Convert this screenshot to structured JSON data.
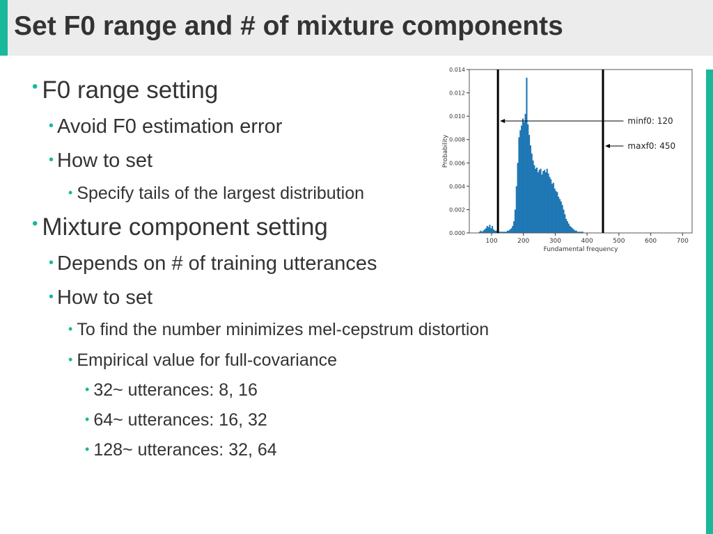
{
  "slide": {
    "title": "Set F0 range and # of mixture components",
    "bullets": [
      {
        "level": 1,
        "text": "F0 range setting"
      },
      {
        "level": 2,
        "text": "Avoid F0 estimation error"
      },
      {
        "level": 2,
        "text": "How to set"
      },
      {
        "level": 3,
        "text": "Specify tails of the largest distribution"
      },
      {
        "level": 1,
        "text": "Mixture component setting"
      },
      {
        "level": 2,
        "text": "Depends on # of training utterances"
      },
      {
        "level": 2,
        "text": "How to set"
      },
      {
        "level": 3,
        "text": "To find the number minimizes mel-cepstrum distortion"
      },
      {
        "level": 3,
        "text": "Empirical value for full-covariance"
      },
      {
        "level": 4,
        "text": "32~ utterances: 8, 16"
      },
      {
        "level": 4,
        "text": "64~ utterances: 16, 32"
      },
      {
        "level": 4,
        "text": "128~ utterances: 32, 64"
      }
    ],
    "bullet_glyph": "•",
    "colors": {
      "accent": "#19b89b",
      "title_band": "#ececec",
      "text": "#333333",
      "bars": "#1f77b4"
    }
  },
  "chart_data": {
    "type": "bar",
    "xlabel": "Fundamental frequency",
    "ylabel": "Probability",
    "xlim": [
      30,
      730
    ],
    "ylim": [
      0,
      0.014
    ],
    "xticks": [
      100,
      200,
      300,
      400,
      500,
      600,
      700
    ],
    "yticks": [
      0.0,
      0.002,
      0.004,
      0.006,
      0.008,
      0.01,
      0.012,
      0.014
    ],
    "ytick_labels": [
      "0.000",
      "0.002",
      "0.004",
      "0.006",
      "0.008",
      "0.010",
      "0.012",
      "0.014"
    ],
    "bin_width": 4,
    "bins": [
      {
        "x": 60,
        "y": 0.0001
      },
      {
        "x": 64,
        "y": 0.0002
      },
      {
        "x": 68,
        "y": 0.0001
      },
      {
        "x": 72,
        "y": 0.0002
      },
      {
        "x": 76,
        "y": 0.0003
      },
      {
        "x": 80,
        "y": 0.0004
      },
      {
        "x": 84,
        "y": 0.0006
      },
      {
        "x": 88,
        "y": 0.0005
      },
      {
        "x": 92,
        "y": 0.0007
      },
      {
        "x": 96,
        "y": 0.0004
      },
      {
        "x": 100,
        "y": 0.0006
      },
      {
        "x": 104,
        "y": 0.0003
      },
      {
        "x": 108,
        "y": 0.0002
      },
      {
        "x": 112,
        "y": 0.0002
      },
      {
        "x": 116,
        "y": 0.0001
      },
      {
        "x": 120,
        "y": 0.0001
      },
      {
        "x": 124,
        "y": 0.0001
      },
      {
        "x": 128,
        "y": 0.0001
      },
      {
        "x": 132,
        "y": 0.0001
      },
      {
        "x": 136,
        "y": 0.0001
      },
      {
        "x": 140,
        "y": 0.0001
      },
      {
        "x": 144,
        "y": 0.0001
      },
      {
        "x": 148,
        "y": 0.0002
      },
      {
        "x": 152,
        "y": 0.0002
      },
      {
        "x": 156,
        "y": 0.0003
      },
      {
        "x": 160,
        "y": 0.0004
      },
      {
        "x": 164,
        "y": 0.0006
      },
      {
        "x": 168,
        "y": 0.001
      },
      {
        "x": 172,
        "y": 0.002
      },
      {
        "x": 176,
        "y": 0.004
      },
      {
        "x": 180,
        "y": 0.006
      },
      {
        "x": 184,
        "y": 0.0082
      },
      {
        "x": 188,
        "y": 0.0088
      },
      {
        "x": 192,
        "y": 0.0092
      },
      {
        "x": 196,
        "y": 0.0098
      },
      {
        "x": 200,
        "y": 0.0095
      },
      {
        "x": 204,
        "y": 0.0102
      },
      {
        "x": 208,
        "y": 0.0133
      },
      {
        "x": 212,
        "y": 0.0093
      },
      {
        "x": 216,
        "y": 0.0084
      },
      {
        "x": 220,
        "y": 0.0075
      },
      {
        "x": 224,
        "y": 0.0068
      },
      {
        "x": 228,
        "y": 0.0062
      },
      {
        "x": 232,
        "y": 0.0058
      },
      {
        "x": 236,
        "y": 0.0055
      },
      {
        "x": 240,
        "y": 0.0056
      },
      {
        "x": 244,
        "y": 0.0052
      },
      {
        "x": 248,
        "y": 0.0054
      },
      {
        "x": 252,
        "y": 0.0055
      },
      {
        "x": 256,
        "y": 0.005
      },
      {
        "x": 260,
        "y": 0.0053
      },
      {
        "x": 264,
        "y": 0.0054
      },
      {
        "x": 268,
        "y": 0.0052
      },
      {
        "x": 272,
        "y": 0.0055
      },
      {
        "x": 276,
        "y": 0.0051
      },
      {
        "x": 280,
        "y": 0.0048
      },
      {
        "x": 284,
        "y": 0.0046
      },
      {
        "x": 288,
        "y": 0.0042
      },
      {
        "x": 292,
        "y": 0.0043
      },
      {
        "x": 296,
        "y": 0.0038
      },
      {
        "x": 300,
        "y": 0.0036
      },
      {
        "x": 304,
        "y": 0.0035
      },
      {
        "x": 308,
        "y": 0.0031
      },
      {
        "x": 312,
        "y": 0.0029
      },
      {
        "x": 316,
        "y": 0.0027
      },
      {
        "x": 320,
        "y": 0.0024
      },
      {
        "x": 324,
        "y": 0.002
      },
      {
        "x": 328,
        "y": 0.0016
      },
      {
        "x": 332,
        "y": 0.0012
      },
      {
        "x": 336,
        "y": 0.001
      },
      {
        "x": 340,
        "y": 0.0008
      },
      {
        "x": 344,
        "y": 0.0006
      },
      {
        "x": 348,
        "y": 0.0005
      },
      {
        "x": 352,
        "y": 0.0004
      },
      {
        "x": 356,
        "y": 0.0003
      },
      {
        "x": 360,
        "y": 0.0002
      },
      {
        "x": 364,
        "y": 0.0002
      },
      {
        "x": 368,
        "y": 0.0001
      },
      {
        "x": 372,
        "y": 0.0001
      },
      {
        "x": 376,
        "y": 0.0001
      },
      {
        "x": 380,
        "y": 0.0001
      },
      {
        "x": 384,
        "y": 0.0001
      }
    ],
    "markers": [
      {
        "x": 120,
        "label": "minf0: 120"
      },
      {
        "x": 450,
        "label": "maxf0: 450"
      }
    ]
  }
}
